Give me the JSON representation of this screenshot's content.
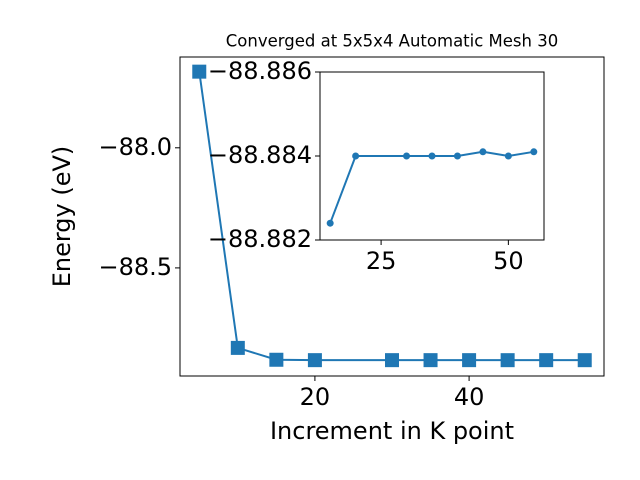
{
  "chart_data": [
    {
      "type": "line",
      "title": "Converged at 5x5x4 Automatic Mesh 30",
      "x_label": "Increment in K point",
      "y_label": "Energy (eV)",
      "x": [
        5,
        10,
        15,
        20,
        30,
        35,
        40,
        45,
        50,
        55
      ],
      "series": [
        {
          "color": "#1f77b4",
          "marker": "square",
          "values": [
            -87.683,
            -88.833,
            -88.8824,
            -88.884,
            -88.884,
            -88.884,
            -88.884,
            -88.8841,
            -88.884,
            -88.8841
          ]
        }
      ],
      "xlim": [
        2.5,
        57.5
      ],
      "ylim": [
        -88.95,
        -87.622
      ],
      "xticks": [
        20,
        40
      ],
      "yticks": [
        {
          "value": -88.0,
          "label": "−88.0"
        },
        {
          "value": -88.5,
          "label": "−88.5"
        }
      ]
    },
    {
      "type": "line",
      "x": [
        15,
        20,
        30,
        35,
        40,
        45,
        50,
        55
      ],
      "series": [
        {
          "color": "#1f77b4",
          "marker": "circle",
          "values": [
            -88.8824,
            -88.884,
            -88.884,
            -88.884,
            -88.884,
            -88.8841,
            -88.884,
            -88.8841
          ]
        }
      ],
      "xlim": [
        13,
        57
      ],
      "ylim": [
        -88.882,
        -88.886
      ],
      "xticks": [
        25,
        50
      ],
      "yticks": [
        {
          "value": -88.886,
          "label": "−88.886"
        },
        {
          "value": -88.884,
          "label": "−88.884"
        },
        {
          "value": -88.882,
          "label": "−88.882"
        }
      ]
    }
  ]
}
